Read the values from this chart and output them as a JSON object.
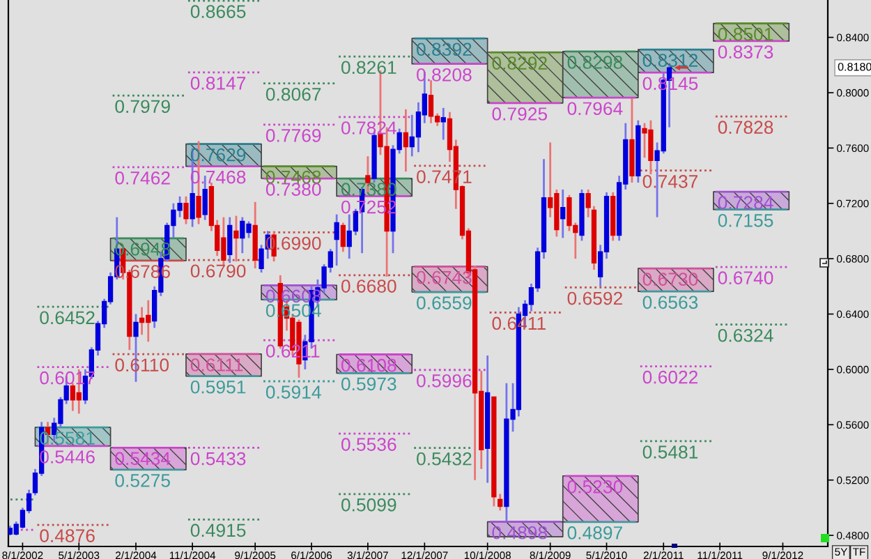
{
  "chart_data": {
    "type": "candlestick",
    "x": [
      "2002-06",
      "2002-07",
      "2002-08",
      "2002-09",
      "2002-10",
      "2002-11",
      "2002-12",
      "2003-01",
      "2003-02",
      "2003-03",
      "2003-04",
      "2003-05",
      "2003-06",
      "2003-07",
      "2003-08",
      "2003-09",
      "2003-10",
      "2003-11",
      "2003-12",
      "2004-01",
      "2004-02",
      "2004-03",
      "2004-04",
      "2004-05",
      "2004-06",
      "2004-07",
      "2004-08",
      "2004-09",
      "2004-10",
      "2004-11",
      "2004-12",
      "2005-01",
      "2005-02",
      "2005-03",
      "2005-04",
      "2005-05",
      "2005-06",
      "2005-07",
      "2005-08",
      "2005-09",
      "2005-10",
      "2005-11",
      "2005-12",
      "2006-01",
      "2006-02",
      "2006-03",
      "2006-04",
      "2006-05",
      "2006-06",
      "2006-07",
      "2006-08",
      "2006-09",
      "2006-10",
      "2006-11",
      "2006-12",
      "2007-01",
      "2007-02",
      "2007-03",
      "2007-04",
      "2007-05",
      "2007-06",
      "2007-07",
      "2007-08",
      "2007-09",
      "2007-10",
      "2007-11",
      "2007-12",
      "2008-01",
      "2008-02",
      "2008-03",
      "2008-04",
      "2008-05",
      "2008-06",
      "2008-07",
      "2008-08",
      "2008-09",
      "2008-10",
      "2008-11",
      "2008-12",
      "2009-01",
      "2009-02",
      "2009-03",
      "2009-04",
      "2009-05",
      "2009-06",
      "2009-07",
      "2009-08",
      "2009-09",
      "2009-10",
      "2009-11",
      "2009-12",
      "2010-01",
      "2010-02",
      "2010-03",
      "2010-04",
      "2010-05",
      "2010-06",
      "2010-07",
      "2010-08",
      "2010-09",
      "2010-10",
      "2010-11",
      "2010-12",
      "2011-01",
      "2011-02",
      "2011-03"
    ],
    "ohlc": [
      [
        0.481,
        0.487,
        0.48,
        0.485
      ],
      [
        0.481,
        0.49,
        0.48,
        0.488
      ],
      [
        0.486,
        0.5,
        0.485,
        0.498
      ],
      [
        0.498,
        0.513,
        0.496,
        0.51
      ],
      [
        0.511,
        0.528,
        0.509,
        0.525
      ],
      [
        0.525,
        0.562,
        0.523,
        0.558
      ],
      [
        0.558,
        0.562,
        0.545,
        0.553
      ],
      [
        0.553,
        0.565,
        0.548,
        0.561
      ],
      [
        0.561,
        0.58,
        0.558,
        0.578
      ],
      [
        0.578,
        0.595,
        0.575,
        0.588
      ],
      [
        0.588,
        0.59,
        0.57,
        0.578
      ],
      [
        0.583,
        0.6,
        0.568,
        0.578
      ],
      [
        0.578,
        0.6,
        0.575,
        0.595
      ],
      [
        0.595,
        0.616,
        0.593,
        0.614
      ],
      [
        0.614,
        0.635,
        0.61,
        0.633
      ],
      [
        0.633,
        0.651,
        0.63,
        0.649
      ],
      [
        0.649,
        0.67,
        0.647,
        0.667
      ],
      [
        0.667,
        0.71,
        0.665,
        0.687
      ],
      [
        0.687,
        0.69,
        0.665,
        0.67
      ],
      [
        0.67,
        0.672,
        0.614,
        0.624
      ],
      [
        0.624,
        0.64,
        0.591,
        0.634
      ],
      [
        0.637,
        0.645,
        0.625,
        0.634
      ],
      [
        0.639,
        0.65,
        0.62,
        0.634
      ],
      [
        0.635,
        0.66,
        0.63,
        0.657
      ],
      [
        0.656,
        0.685,
        0.653,
        0.68
      ],
      [
        0.68,
        0.706,
        0.678,
        0.704
      ],
      [
        0.704,
        0.72,
        0.695,
        0.715
      ],
      [
        0.715,
        0.725,
        0.71,
        0.72
      ],
      [
        0.72,
        0.725,
        0.705,
        0.709
      ],
      [
        0.709,
        0.76,
        0.703,
        0.727
      ],
      [
        0.725,
        0.765,
        0.705,
        0.71
      ],
      [
        0.712,
        0.74,
        0.708,
        0.73
      ],
      [
        0.732,
        0.735,
        0.7,
        0.704
      ],
      [
        0.704,
        0.708,
        0.682,
        0.686
      ],
      [
        0.695,
        0.71,
        0.675,
        0.679
      ],
      [
        0.683,
        0.71,
        0.677,
        0.704
      ],
      [
        0.7,
        0.711,
        0.678,
        0.695
      ],
      [
        0.695,
        0.71,
        0.684,
        0.707
      ],
      [
        0.699,
        0.707,
        0.695,
        0.705
      ],
      [
        0.704,
        0.721,
        0.673,
        0.679
      ],
      [
        0.673,
        0.69,
        0.67,
        0.687
      ],
      [
        0.687,
        0.7,
        0.68,
        0.697
      ],
      [
        0.697,
        0.7,
        0.678,
        0.682
      ],
      [
        0.662,
        0.668,
        0.615,
        0.617
      ],
      [
        0.645,
        0.65,
        0.628,
        0.637
      ],
      [
        0.637,
        0.64,
        0.61,
        0.614
      ],
      [
        0.634,
        0.636,
        0.594,
        0.604
      ],
      [
        0.607,
        0.625,
        0.6,
        0.62
      ],
      [
        0.62,
        0.66,
        0.615,
        0.657
      ],
      [
        0.65,
        0.665,
        0.645,
        0.659
      ],
      [
        0.659,
        0.676,
        0.655,
        0.674
      ],
      [
        0.674,
        0.687,
        0.67,
        0.685
      ],
      [
        0.694,
        0.712,
        0.675,
        0.706
      ],
      [
        0.704,
        0.706,
        0.685,
        0.689
      ],
      [
        0.689,
        0.712,
        0.68,
        0.7
      ],
      [
        0.7,
        0.716,
        0.697,
        0.714
      ],
      [
        0.714,
        0.732,
        0.684,
        0.73
      ],
      [
        0.74,
        0.754,
        0.727,
        0.735
      ],
      [
        0.738,
        0.772,
        0.735,
        0.769
      ],
      [
        0.77,
        0.816,
        0.755,
        0.761
      ],
      [
        0.761,
        0.775,
        0.667,
        0.7
      ],
      [
        0.7,
        0.762,
        0.684,
        0.759
      ],
      [
        0.759,
        0.774,
        0.756,
        0.771
      ],
      [
        0.771,
        0.788,
        0.743,
        0.761
      ],
      [
        0.761,
        0.784,
        0.754,
        0.768
      ],
      [
        0.768,
        0.793,
        0.757,
        0.786
      ],
      [
        0.784,
        0.815,
        0.778,
        0.799
      ],
      [
        0.798,
        0.809,
        0.778,
        0.783
      ],
      [
        0.783,
        0.785,
        0.776,
        0.779
      ],
      [
        0.779,
        0.789,
        0.766,
        0.782
      ],
      [
        0.781,
        0.786,
        0.75,
        0.759
      ],
      [
        0.761,
        0.766,
        0.716,
        0.73
      ],
      [
        0.732,
        0.733,
        0.694,
        0.697
      ],
      [
        0.7,
        0.702,
        0.667,
        0.67
      ],
      [
        0.672,
        0.675,
        0.52,
        0.583
      ],
      [
        0.584,
        0.599,
        0.528,
        0.542
      ],
      [
        0.543,
        0.61,
        0.518,
        0.583
      ],
      [
        0.58,
        0.58,
        0.501,
        0.508
      ],
      [
        0.506,
        0.51,
        0.498,
        0.501
      ],
      [
        0.501,
        0.59,
        0.49,
        0.564
      ],
      [
        0.564,
        0.59,
        0.555,
        0.571
      ],
      [
        0.571,
        0.645,
        0.566,
        0.64
      ],
      [
        0.639,
        0.65,
        0.63,
        0.647
      ],
      [
        0.647,
        0.662,
        0.642,
        0.659
      ],
      [
        0.659,
        0.688,
        0.656,
        0.685
      ],
      [
        0.685,
        0.752,
        0.68,
        0.724
      ],
      [
        0.724,
        0.764,
        0.71,
        0.717
      ],
      [
        0.727,
        0.73,
        0.696,
        0.701
      ],
      [
        0.709,
        0.73,
        0.695,
        0.717
      ],
      [
        0.724,
        0.726,
        0.7,
        0.704
      ],
      [
        0.704,
        0.706,
        0.68,
        0.699
      ],
      [
        0.697,
        0.73,
        0.693,
        0.727
      ],
      [
        0.727,
        0.73,
        0.71,
        0.717
      ],
      [
        0.715,
        0.718,
        0.672,
        0.677
      ],
      [
        0.667,
        0.69,
        0.66,
        0.685
      ],
      [
        0.685,
        0.728,
        0.68,
        0.725
      ],
      [
        0.725,
        0.728,
        0.693,
        0.697
      ],
      [
        0.697,
        0.74,
        0.693,
        0.735
      ],
      [
        0.734,
        0.778,
        0.73,
        0.766
      ],
      [
        0.766,
        0.796,
        0.735,
        0.74
      ],
      [
        0.74,
        0.78,
        0.735,
        0.776
      ],
      [
        0.774,
        0.778,
        0.753,
        0.771
      ],
      [
        0.773,
        0.78,
        0.741,
        0.751
      ],
      [
        0.751,
        0.764,
        0.71,
        0.758
      ],
      [
        0.758,
        0.814,
        0.756,
        0.809
      ],
      [
        0.809,
        0.82,
        0.775,
        0.818
      ]
    ],
    "colors": [
      "#0000dd",
      "#0000dd",
      "#0000dd",
      "#0000dd",
      "#0000dd",
      "#0000dd",
      "#dd0000",
      "#0000dd",
      "#0000dd",
      "#0000dd",
      "#dd0000",
      "#dd0000",
      "#0000dd",
      "#0000dd",
      "#0000dd",
      "#0000dd",
      "#0000dd",
      "#0000dd",
      "#dd0000",
      "#dd0000",
      "#0000dd",
      "#dd0000",
      "#dd0000",
      "#0000dd",
      "#0000dd",
      "#0000dd",
      "#0000dd",
      "#0000dd",
      "#dd0000",
      "#0000dd",
      "#dd0000",
      "#0000dd",
      "#dd0000",
      "#dd0000",
      "#dd0000",
      "#0000dd",
      "#dd0000",
      "#0000dd",
      "#0000dd",
      "#dd0000",
      "#0000dd",
      "#0000dd",
      "#dd0000",
      "#dd0000",
      "#dd0000",
      "#dd0000",
      "#dd0000",
      "#0000dd",
      "#0000dd",
      "#0000dd",
      "#0000dd",
      "#0000dd",
      "#0000dd",
      "#dd0000",
      "#0000dd",
      "#0000dd",
      "#0000dd",
      "#dd0000",
      "#0000dd",
      "#dd0000",
      "#dd0000",
      "#0000dd",
      "#0000dd",
      "#dd0000",
      "#0000dd",
      "#0000dd",
      "#0000dd",
      "#dd0000",
      "#dd0000",
      "#0000dd",
      "#dd0000",
      "#dd0000",
      "#dd0000",
      "#dd0000",
      "#dd0000",
      "#dd0000",
      "#0000dd",
      "#dd0000",
      "#dd0000",
      "#0000dd",
      "#0000dd",
      "#0000dd",
      "#0000dd",
      "#0000dd",
      "#0000dd",
      "#0000dd",
      "#dd0000",
      "#dd0000",
      "#0000dd",
      "#dd0000",
      "#dd0000",
      "#0000dd",
      "#dd0000",
      "#dd0000",
      "#0000dd",
      "#0000dd",
      "#dd0000",
      "#0000dd",
      "#0000dd",
      "#dd0000",
      "#0000dd",
      "#dd0000",
      "#dd0000",
      "#0000dd",
      "#0000dd",
      "#0000dd"
    ],
    "series": [
      {
        "type": "line",
        "x": [
          "2002-05-24",
          "2002-10"
        ],
        "values": [
          0.506,
          0.506
        ],
        "color": "#3a8a5c",
        "line_style": "dotted"
      },
      {
        "type": "line",
        "x": [
          "2002-05-24",
          "2002-10"
        ],
        "values": [
          0.484,
          0.484
        ],
        "color": "#cc44cc",
        "line_style": "dotted"
      },
      {
        "type": "line",
        "x": [
          "2002-10",
          "2003-10"
        ],
        "values": [
          0.6452,
          0.6452
        ],
        "color": "#3a8a5c",
        "line_style": "dotted",
        "value_labels": [
          "0.6452",
          null
        ]
      },
      {
        "type": "line",
        "x": [
          "2002-10",
          "2003-10"
        ],
        "values": [
          0.6017,
          0.6017
        ],
        "color": "#cc44cc",
        "line_style": "dotted",
        "value_labels": [
          "0.6017",
          null
        ]
      },
      {
        "type": "line",
        "x": [
          "2002-10",
          "2003-10"
        ],
        "values": [
          0.5581,
          0.5581
        ],
        "lower": [
          0.5446,
          0.5446
        ],
        "upper": [
          0.5581,
          0.5581
        ],
        "color": "#3c9a9a",
        "line_style": "solid",
        "value_labels": [
          "0.5581",
          null
        ]
      },
      {
        "type": "line",
        "x": [
          "2002-10",
          "2003-10"
        ],
        "values": [
          0.5446,
          0.5446
        ],
        "color": "#cc44cc",
        "line_style": "solid",
        "value_labels": [
          "0.5446",
          null
        ]
      },
      {
        "type": "line",
        "x": [
          "2002-10",
          "2003-10"
        ],
        "values": [
          0.4876,
          0.4876
        ],
        "color": "#c84a4a",
        "line_style": "dotted",
        "value_labels": [
          "0.4876",
          null
        ]
      },
      {
        "type": "line",
        "x": [
          "2003-10",
          "2004-10"
        ],
        "values": [
          0.7979,
          0.7979
        ],
        "color": "#3a8a5c",
        "line_style": "dotted",
        "value_labels": [
          "0.7979",
          null
        ]
      },
      {
        "type": "line",
        "x": [
          "2003-10",
          "2004-10"
        ],
        "values": [
          0.7462,
          0.7462
        ],
        "color": "#cc44cc",
        "line_style": "dotted",
        "value_labels": [
          "0.7462",
          null
        ]
      },
      {
        "type": "line",
        "x": [
          "2003-10",
          "2004-10"
        ],
        "values": [
          0.6948,
          0.6948
        ],
        "lower": [
          0.6786,
          0.6786
        ],
        "upper": [
          0.6948,
          0.6948
        ],
        "color": "#3a8a5c",
        "line_style": "solid",
        "value_labels": [
          "0.6948",
          null
        ]
      },
      {
        "type": "line",
        "x": [
          "2003-10",
          "2004-10"
        ],
        "values": [
          0.6786,
          0.6786
        ],
        "color": "#c84a4a",
        "line_style": "solid",
        "value_labels": [
          "0.6786",
          null
        ]
      },
      {
        "type": "line",
        "x": [
          "2003-10",
          "2004-10"
        ],
        "values": [
          0.611,
          0.611
        ],
        "color": "#c84a4a",
        "line_style": "dotted",
        "value_labels": [
          "0.6110",
          null
        ]
      },
      {
        "type": "line",
        "x": [
          "2003-10",
          "2004-10"
        ],
        "values": [
          0.5434,
          0.5434
        ],
        "lower": [
          0.5275,
          0.5275
        ],
        "upper": [
          0.5434,
          0.5434
        ],
        "color": "#cc44cc",
        "line_style": "solid",
        "value_labels": [
          "0.5434",
          null
        ]
      },
      {
        "type": "line",
        "x": [
          "2003-10",
          "2004-10"
        ],
        "values": [
          0.5275,
          0.5275
        ],
        "color": "#3c9a9a",
        "line_style": "solid",
        "value_labels": [
          "0.5275",
          null
        ]
      },
      {
        "type": "line",
        "x": [
          "2004-10",
          "2005-10"
        ],
        "values": [
          0.8665,
          0.8665
        ],
        "color": "#3a8a5c",
        "line_style": "dotted",
        "value_labels": [
          "0.8665",
          null
        ]
      },
      {
        "type": "line",
        "x": [
          "2004-10",
          "2005-10"
        ],
        "values": [
          0.8147,
          0.8147
        ],
        "color": "#cc44cc",
        "line_style": "dotted",
        "value_labels": [
          "0.8147",
          null
        ]
      },
      {
        "type": "line",
        "x": [
          "2004-10",
          "2005-10"
        ],
        "values": [
          0.7629,
          0.7629
        ],
        "lower": [
          0.7468,
          0.7468
        ],
        "upper": [
          0.7629,
          0.7629
        ],
        "color": "#2a7f8f",
        "line_style": "solid",
        "value_labels": [
          "0.7629",
          null
        ]
      },
      {
        "type": "line",
        "x": [
          "2004-10",
          "2005-10"
        ],
        "values": [
          0.7468,
          0.7468
        ],
        "color": "#cc44cc",
        "line_style": "solid",
        "value_labels": [
          "0.7468",
          null
        ]
      },
      {
        "type": "line",
        "x": [
          "2004-10",
          "2005-10"
        ],
        "values": [
          0.679,
          0.679
        ],
        "color": "#c84a4a",
        "line_style": "dotted",
        "value_labels": [
          "0.6790",
          null
        ]
      },
      {
        "type": "line",
        "x": [
          "2004-10",
          "2005-10"
        ],
        "values": [
          0.6111,
          0.6111
        ],
        "lower": [
          0.5951,
          0.5951
        ],
        "upper": [
          0.6111,
          0.6111
        ],
        "color": "#d0509a",
        "line_style": "solid",
        "value_labels": [
          "0.6111",
          null
        ]
      },
      {
        "type": "line",
        "x": [
          "2004-10",
          "2005-10"
        ],
        "values": [
          0.5951,
          0.5951
        ],
        "color": "#3c9a9a",
        "line_style": "solid",
        "value_labels": [
          "0.5951",
          null
        ]
      },
      {
        "type": "line",
        "x": [
          "2004-10",
          "2005-10"
        ],
        "values": [
          0.5433,
          0.5433
        ],
        "color": "#cc44cc",
        "line_style": "dotted",
        "value_labels": [
          "0.5433",
          null
        ]
      },
      {
        "type": "line",
        "x": [
          "2004-10",
          "2005-10"
        ],
        "values": [
          0.4915,
          0.4915
        ],
        "color": "#3a8a5c",
        "line_style": "dotted",
        "value_labels": [
          "0.4915",
          null
        ]
      },
      {
        "type": "line",
        "x": [
          "2005-10",
          "2006-10"
        ],
        "values": [
          0.8067,
          0.8067
        ],
        "color": "#3a8a5c",
        "line_style": "dotted",
        "value_labels": [
          "0.8067",
          null
        ]
      },
      {
        "type": "line",
        "x": [
          "2005-10",
          "2006-10"
        ],
        "values": [
          0.7769,
          0.7769
        ],
        "color": "#cc44cc",
        "line_style": "dotted",
        "value_labels": [
          "0.7769",
          null
        ]
      },
      {
        "type": "line",
        "x": [
          "2005-10",
          "2006-10"
        ],
        "values": [
          0.7468,
          0.7468
        ],
        "lower": [
          0.738,
          0.738
        ],
        "upper": [
          0.7468,
          0.7468
        ],
        "color": "#5a8a2a",
        "line_style": "solid",
        "value_labels": [
          "0.7468",
          null
        ]
      },
      {
        "type": "line",
        "x": [
          "2005-10",
          "2006-10"
        ],
        "values": [
          0.738,
          0.738
        ],
        "color": "#cc44cc",
        "line_style": "solid",
        "value_labels": [
          "0.7380",
          null
        ]
      },
      {
        "type": "line",
        "x": [
          "2005-10",
          "2006-10"
        ],
        "values": [
          0.699,
          0.699
        ],
        "color": "#c84a4a",
        "line_style": "dotted",
        "value_labels": [
          "0.6990",
          null
        ]
      },
      {
        "type": "line",
        "x": [
          "2005-10",
          "2006-10"
        ],
        "values": [
          0.6608,
          0.6608
        ],
        "lower": [
          0.6504,
          0.6504
        ],
        "upper": [
          0.6608,
          0.6608
        ],
        "color": "#a050d0",
        "line_style": "solid",
        "value_labels": [
          "0.6608",
          null
        ]
      },
      {
        "type": "line",
        "x": [
          "2005-10",
          "2006-10"
        ],
        "values": [
          0.6504,
          0.6504
        ],
        "color": "#3c9a9a",
        "line_style": "solid",
        "value_labels": [
          "0.6504",
          null
        ]
      },
      {
        "type": "line",
        "x": [
          "2005-10",
          "2006-10"
        ],
        "values": [
          0.6211,
          0.6211
        ],
        "color": "#cc44cc",
        "line_style": "dotted",
        "value_labels": [
          "0.6211",
          null
        ]
      },
      {
        "type": "line",
        "x": [
          "2005-10",
          "2006-10"
        ],
        "values": [
          0.5914,
          0.5914
        ],
        "color": "#3c9a9a",
        "line_style": "dotted",
        "value_labels": [
          "0.5914",
          null
        ]
      },
      {
        "type": "line",
        "x": [
          "2006-10",
          "2007-10"
        ],
        "values": [
          0.8261,
          0.8261
        ],
        "color": "#3a8a5c",
        "line_style": "dotted",
        "value_labels": [
          "0.8261",
          null
        ]
      },
      {
        "type": "line",
        "x": [
          "2006-10",
          "2007-10"
        ],
        "values": [
          0.7824,
          0.7824
        ],
        "color": "#cc44cc",
        "line_style": "dotted",
        "value_labels": [
          "0.7824",
          null
        ]
      },
      {
        "type": "line",
        "x": [
          "2006-10",
          "2007-10"
        ],
        "values": [
          0.738,
          0.738
        ],
        "lower": [
          0.7252,
          0.7252
        ],
        "upper": [
          0.738,
          0.738
        ],
        "color": "#3a8a5c",
        "line_style": "solid",
        "value_labels": [
          "0.7380",
          null
        ]
      },
      {
        "type": "line",
        "x": [
          "2006-10",
          "2007-10"
        ],
        "values": [
          0.7252,
          0.7252
        ],
        "color": "#cc44cc",
        "line_style": "solid",
        "value_labels": [
          "0.7252",
          null
        ]
      },
      {
        "type": "line",
        "x": [
          "2006-10",
          "2007-10"
        ],
        "values": [
          0.668,
          0.668
        ],
        "color": "#c84a4a",
        "line_style": "dotted",
        "value_labels": [
          "0.6680",
          null
        ]
      },
      {
        "type": "line",
        "x": [
          "2006-10",
          "2007-10"
        ],
        "values": [
          0.6108,
          0.6108
        ],
        "lower": [
          0.5973,
          0.5973
        ],
        "upper": [
          0.6108,
          0.6108
        ],
        "color": "#cc44cc",
        "line_style": "solid",
        "value_labels": [
          "0.6108",
          null
        ]
      },
      {
        "type": "line",
        "x": [
          "2006-10",
          "2007-10"
        ],
        "values": [
          0.5973,
          0.5973
        ],
        "color": "#3c9a9a",
        "line_style": "solid",
        "value_labels": [
          "0.5973",
          null
        ]
      },
      {
        "type": "line",
        "x": [
          "2006-10",
          "2007-10"
        ],
        "values": [
          0.5536,
          0.5536
        ],
        "color": "#cc44cc",
        "line_style": "dotted",
        "value_labels": [
          "0.5536",
          null
        ]
      },
      {
        "type": "line",
        "x": [
          "2006-10",
          "2007-10"
        ],
        "values": [
          0.5099,
          0.5099
        ],
        "color": "#3a8a5c",
        "line_style": "dotted",
        "value_labels": [
          "0.5099",
          null
        ]
      },
      {
        "type": "line",
        "x": [
          "2007-10",
          "2008-10"
        ],
        "values": [
          0.8392,
          0.8392
        ],
        "lower": [
          0.8208,
          0.8208
        ],
        "upper": [
          0.8392,
          0.8392
        ],
        "color": "#2a7f8f",
        "line_style": "solid",
        "value_labels": [
          "0.8392",
          null
        ]
      },
      {
        "type": "line",
        "x": [
          "2007-10",
          "2008-10"
        ],
        "values": [
          0.8208,
          0.8208
        ],
        "color": "#cc44cc",
        "line_style": "solid",
        "value_labels": [
          "0.8208",
          null
        ]
      },
      {
        "type": "line",
        "x": [
          "2007-10",
          "2008-10"
        ],
        "values": [
          0.7471,
          0.7471
        ],
        "color": "#c84a4a",
        "line_style": "dotted",
        "value_labels": [
          "0.7471",
          null
        ]
      },
      {
        "type": "line",
        "x": [
          "2007-10",
          "2008-10"
        ],
        "values": [
          0.6743,
          0.6743
        ],
        "lower": [
          0.6559,
          0.6559
        ],
        "upper": [
          0.6743,
          0.6743
        ],
        "color": "#d0509a",
        "line_style": "solid",
        "value_labels": [
          "0.6743",
          null
        ]
      },
      {
        "type": "line",
        "x": [
          "2007-10",
          "2008-10"
        ],
        "values": [
          0.6559,
          0.6559
        ],
        "color": "#3c9a9a",
        "line_style": "solid",
        "value_labels": [
          "0.6559",
          null
        ]
      },
      {
        "type": "line",
        "x": [
          "2007-10",
          "2008-10"
        ],
        "values": [
          0.5996,
          0.5996
        ],
        "color": "#cc44cc",
        "line_style": "dotted",
        "value_labels": [
          "0.5996",
          null
        ]
      },
      {
        "type": "line",
        "x": [
          "2007-10",
          "2008-07-20"
        ],
        "values": [
          0.5432,
          0.5432
        ],
        "color": "#3a8a5c",
        "line_style": "dotted",
        "value_labels": [
          "0.5432",
          null
        ]
      },
      {
        "type": "line",
        "x": [
          "2008-10",
          "2009-10"
        ],
        "values": [
          0.8292,
          0.8292
        ],
        "lower": [
          0.7925,
          0.7925
        ],
        "upper": [
          0.8292,
          0.8292
        ],
        "color": "#5a8a2a",
        "line_style": "solid",
        "value_labels": [
          "0.8292",
          null
        ]
      },
      {
        "type": "line",
        "x": [
          "2008-10",
          "2009-10"
        ],
        "values": [
          0.7925,
          0.7925
        ],
        "color": "#cc44cc",
        "line_style": "solid",
        "value_labels": [
          "0.7925",
          null
        ]
      },
      {
        "type": "line",
        "x": [
          "2008-10",
          "2009-10"
        ],
        "values": [
          0.6411,
          0.6411
        ],
        "color": "#c84a4a",
        "line_style": "dotted",
        "value_labels": [
          "0.6411",
          null
        ]
      },
      {
        "type": "line",
        "x": [
          "2008-10",
          "2009-10"
        ],
        "values": [
          0.4898,
          0.4898
        ],
        "lower": [
          0.479,
          0.479
        ],
        "upper": [
          0.4898,
          0.4898
        ],
        "color": "#a050d0",
        "line_style": "solid",
        "value_labels": [
          "0.4898",
          null
        ]
      },
      {
        "type": "line",
        "x": [
          "2009-10",
          "2010-10"
        ],
        "values": [
          0.8298,
          0.8298
        ],
        "lower": [
          0.7964,
          0.7964
        ],
        "upper": [
          0.8298,
          0.8298
        ],
        "color": "#3a8a5c",
        "line_style": "solid",
        "value_labels": [
          "0.8298",
          null
        ]
      },
      {
        "type": "line",
        "x": [
          "2009-10",
          "2010-10"
        ],
        "values": [
          0.7964,
          0.7964
        ],
        "color": "#cc44cc",
        "line_style": "solid",
        "value_labels": [
          "0.7964",
          null
        ]
      },
      {
        "type": "line",
        "x": [
          "2009-10",
          "2010-10"
        ],
        "values": [
          0.6592,
          0.6592
        ],
        "color": "#c84a4a",
        "line_style": "dotted",
        "value_labels": [
          "0.6592",
          null
        ]
      },
      {
        "type": "line",
        "x": [
          "2009-10",
          "2010-10"
        ],
        "values": [
          0.523,
          0.523
        ],
        "lower": [
          0.4897,
          0.4897
        ],
        "upper": [
          0.523,
          0.523
        ],
        "color": "#cc44cc",
        "line_style": "solid",
        "value_labels": [
          "0.5230",
          null
        ]
      },
      {
        "type": "line",
        "x": [
          "2009-10",
          "2010-10"
        ],
        "values": [
          0.4897,
          0.4897
        ],
        "color": "#3c9a9a",
        "line_style": "solid",
        "value_labels": [
          "0.4897",
          null
        ]
      },
      {
        "type": "line",
        "x": [
          "2010-10",
          "2011-10"
        ],
        "values": [
          0.8312,
          0.8312
        ],
        "lower": [
          0.8145,
          0.8145
        ],
        "upper": [
          0.8312,
          0.8312
        ],
        "color": "#2a7f8f",
        "line_style": "solid",
        "value_labels": [
          "0.8312",
          null
        ]
      },
      {
        "type": "line",
        "x": [
          "2010-10",
          "2011-10"
        ],
        "values": [
          0.8145,
          0.8145
        ],
        "color": "#cc44cc",
        "line_style": "solid",
        "value_labels": [
          "0.8145",
          null
        ]
      },
      {
        "type": "line",
        "x": [
          "2010-10",
          "2011-10"
        ],
        "values": [
          0.7437,
          0.7437
        ],
        "color": "#c84a4a",
        "line_style": "dotted",
        "value_labels": [
          "0.7437",
          null
        ]
      },
      {
        "type": "line",
        "x": [
          "2010-10",
          "2011-10"
        ],
        "values": [
          0.673,
          0.673
        ],
        "lower": [
          0.6563,
          0.6563
        ],
        "upper": [
          0.673,
          0.673
        ],
        "color": "#d0509a",
        "line_style": "solid",
        "value_labels": [
          "0.6730",
          null
        ]
      },
      {
        "type": "line",
        "x": [
          "2010-10",
          "2011-10"
        ],
        "values": [
          0.6563,
          0.6563
        ],
        "color": "#3c9a9a",
        "line_style": "solid",
        "value_labels": [
          "0.6563",
          null
        ]
      },
      {
        "type": "line",
        "x": [
          "2010-10",
          "2011-10"
        ],
        "values": [
          0.6022,
          0.6022
        ],
        "color": "#cc44cc",
        "line_style": "dotted",
        "value_labels": [
          "0.6022",
          null
        ]
      },
      {
        "type": "line",
        "x": [
          "2010-10",
          "2011-10"
        ],
        "values": [
          0.5481,
          0.5481
        ],
        "color": "#3a8a5c",
        "line_style": "dotted",
        "value_labels": [
          "0.5481",
          null
        ]
      },
      {
        "type": "line",
        "x": [
          "2011-10",
          "2012-10"
        ],
        "values": [
          0.8501,
          0.8501
        ],
        "lower": [
          0.8373,
          0.8373
        ],
        "upper": [
          0.8501,
          0.8501
        ],
        "color": "#5a8a2a",
        "line_style": "solid",
        "value_labels": [
          "0.8501",
          null
        ]
      },
      {
        "type": "line",
        "x": [
          "2011-10",
          "2012-10"
        ],
        "values": [
          0.8373,
          0.8373
        ],
        "color": "#cc44cc",
        "line_style": "solid",
        "value_labels": [
          "0.8373",
          null
        ]
      },
      {
        "type": "line",
        "x": [
          "2011-10",
          "2012-10"
        ],
        "values": [
          0.7828,
          0.7828
        ],
        "color": "#c84a4a",
        "line_style": "dotted",
        "value_labels": [
          "0.7828",
          null
        ]
      },
      {
        "type": "line",
        "x": [
          "2011-10",
          "2012-10"
        ],
        "values": [
          0.7284,
          0.7284
        ],
        "lower": [
          0.7155,
          0.7155
        ],
        "upper": [
          0.7284,
          0.7284
        ],
        "color": "#a050d0",
        "line_style": "solid",
        "value_labels": [
          "0.7284",
          null
        ]
      },
      {
        "type": "line",
        "x": [
          "2011-10",
          "2012-10"
        ],
        "values": [
          0.7155,
          0.7155
        ],
        "color": "#3c9a9a",
        "line_style": "solid",
        "value_labels": [
          "0.7155",
          null
        ]
      },
      {
        "type": "line",
        "x": [
          "2011-10",
          "2012-10"
        ],
        "values": [
          0.674,
          0.674
        ],
        "color": "#cc44cc",
        "line_style": "dotted",
        "value_labels": [
          "0.6740",
          null
        ]
      },
      {
        "type": "line",
        "x": [
          "2011-10",
          "2012-10"
        ],
        "values": [
          0.6324,
          0.6324
        ],
        "color": "#3a8a5c",
        "line_style": "dotted",
        "value_labels": [
          "0.6324",
          null
        ]
      }
    ],
    "xlim": [
      "2002-05-24",
      "2013-04-07"
    ],
    "ylim": [
      0.472,
      0.867
    ],
    "xticks": [
      {
        "value": "2002-08",
        "label": "8/1/2002"
      },
      {
        "value": "2003-05",
        "label": "5/1/2003"
      },
      {
        "value": "2004-02",
        "label": "2/1/2004"
      },
      {
        "value": "2004-11",
        "label": "11/1/2004"
      },
      {
        "value": "2005-09",
        "label": "9/1/2005"
      },
      {
        "value": "2006-06",
        "label": "6/1/2006"
      },
      {
        "value": "2007-03",
        "label": "3/1/2007"
      },
      {
        "value": "2007-12",
        "label": "12/1/2007"
      },
      {
        "value": "2008-10",
        "label": "10/1/2008"
      },
      {
        "value": "2009-08",
        "label": "8/1/2009"
      },
      {
        "value": "2010-05",
        "label": "5/1/2010"
      },
      {
        "value": "2011-02",
        "label": "2/1/2011"
      },
      {
        "value": "2011-11",
        "label": "11/1/2011"
      },
      {
        "value": "2012-09",
        "label": "9/1/2012"
      }
    ],
    "yticks": [
      {
        "value": 0.48,
        "label": "0.4800"
      },
      {
        "value": 0.52,
        "label": "0.5200"
      },
      {
        "value": 0.56,
        "label": "0.5600"
      },
      {
        "value": 0.6,
        "label": "0.6000"
      },
      {
        "value": 0.64,
        "label": "0.6400"
      },
      {
        "value": 0.68,
        "label": "0.6800"
      },
      {
        "value": 0.72,
        "label": "0.7200"
      },
      {
        "value": 0.76,
        "label": "0.7600"
      },
      {
        "value": 0.8,
        "label": "0.8000"
      },
      {
        "value": 0.84,
        "label": "0.8400"
      }
    ],
    "annotations": [
      "0.8180",
      "5Y",
      "TF"
    ]
  }
}
